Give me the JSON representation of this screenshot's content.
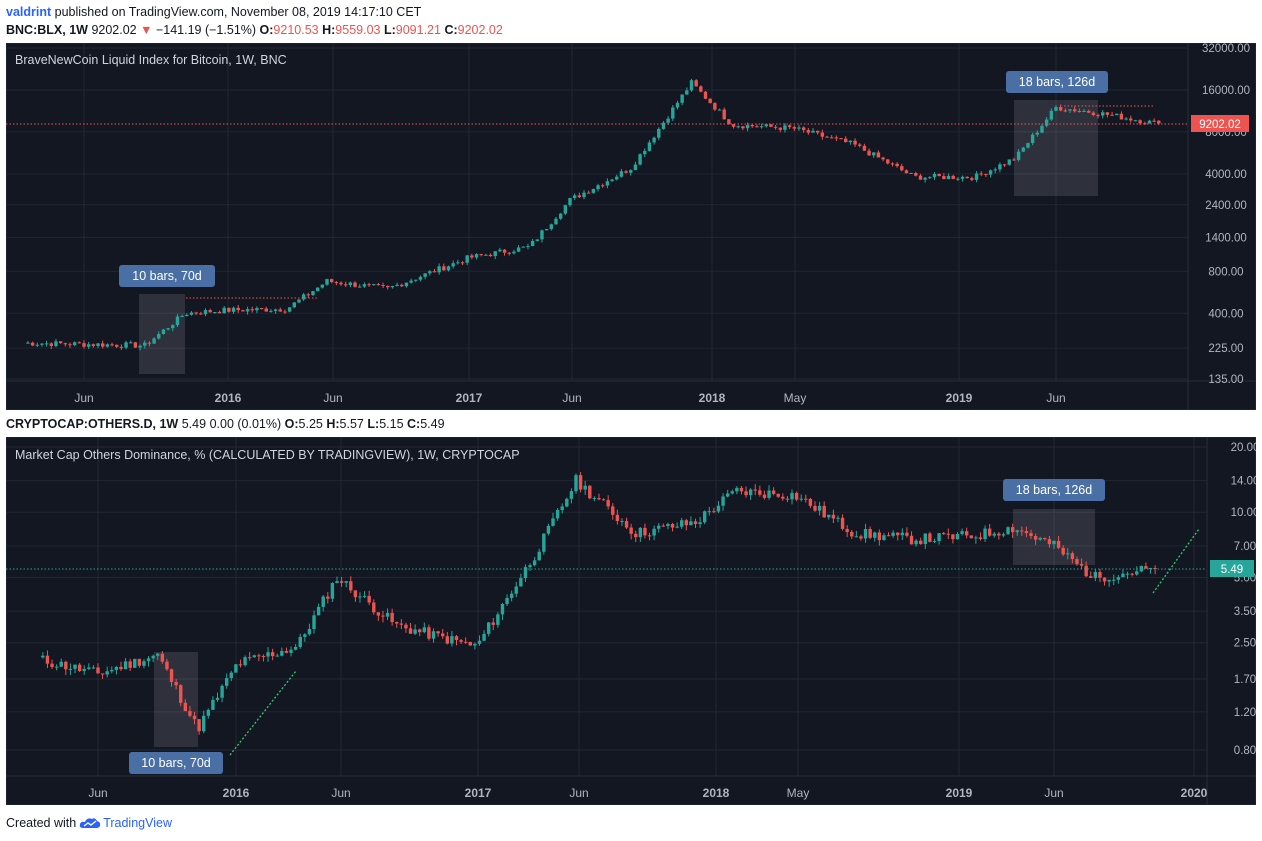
{
  "header": {
    "author": "valdrint",
    "published_text": "published on TradingView.com, November 08, 2019 14:17:10 CET"
  },
  "chart1": {
    "symbol": "BNC:BLX, 1W",
    "last": "9202.02",
    "change": "−141.19 (−1.51%)",
    "o": "9210.53",
    "h": "9559.03",
    "l": "9091.21",
    "c": "9202.02",
    "title": "BraveNewCoin Liquid Index for Bitcoin, 1W, BNC",
    "price_tag": "9202.02",
    "ticks": [
      "32000.00",
      "16000.00",
      "8000.00",
      "4000.00",
      "2400.00",
      "1400.00",
      "800.00",
      "400.00",
      "225.00",
      "135.00"
    ],
    "tick_values": [
      32000,
      16000,
      8000,
      4000,
      2400,
      1400,
      800,
      400,
      225,
      135
    ],
    "annotations": [
      "10 bars, 70d",
      "18 bars, 126d"
    ]
  },
  "chart2": {
    "symbol": "CRYPTOCAP:OTHERS.D, 1W",
    "last": "5.49",
    "change": "0.00 (0.01%)",
    "o": "5.25",
    "h": "5.57",
    "l": "5.15",
    "c": "5.49",
    "title": "Market Cap Others Dominance, % (CALCULATED BY TRADINGVIEW), 1W, CRYPTOCAP",
    "price_tag": "5.49",
    "ticks": [
      "20.00",
      "14.00",
      "10.00",
      "7.00",
      "5.00",
      "3.50",
      "2.50",
      "1.70",
      "1.20",
      "0.80"
    ],
    "tick_values": [
      20,
      14,
      10,
      7,
      5,
      3.5,
      2.5,
      1.7,
      1.2,
      0.8
    ],
    "annotations": [
      "18 bars, 126d",
      "10 bars, 70d"
    ]
  },
  "xaxis1": [
    "Jun",
    "2016",
    "Jun",
    "2017",
    "Jun",
    "2018",
    "May",
    "2019",
    "Jun"
  ],
  "xaxis2": [
    "Jun",
    "2016",
    "Jun",
    "2017",
    "Jun",
    "2018",
    "May",
    "2019",
    "Jun",
    "2020"
  ],
  "footer": {
    "created_with": "Created with",
    "brand": "TradingView"
  },
  "chart_data": [
    {
      "type": "candlestick",
      "title": "BraveNewCoin Liquid Index for Bitcoin, 1W, BNC",
      "scale": "log",
      "ylim": [
        135,
        32000
      ],
      "x": [
        "2015-03",
        "2015-06",
        "2015-09",
        "2015-11",
        "2016-01",
        "2016-04",
        "2016-06",
        "2016-09",
        "2017-01",
        "2017-04",
        "2017-06",
        "2017-09",
        "2017-12",
        "2018-02",
        "2018-05",
        "2018-08",
        "2018-11",
        "2019-02",
        "2019-04",
        "2019-06",
        "2019-08",
        "2019-11"
      ],
      "close": [
        245,
        240,
        235,
        400,
        420,
        430,
        680,
        600,
        1000,
        1200,
        2600,
        4400,
        18000,
        9000,
        8500,
        6500,
        3800,
        3800,
        5200,
        12000,
        11000,
        9202
      ],
      "last": 9202.02
    },
    {
      "type": "candlestick",
      "title": "Market Cap Others Dominance, % (CALCULATED BY TRADINGVIEW), 1W, CRYPTOCAP",
      "scale": "log",
      "ylim": [
        0.8,
        20
      ],
      "x": [
        "2015-03",
        "2015-06",
        "2015-09",
        "2015-11",
        "2016-01",
        "2016-04",
        "2016-06",
        "2016-09",
        "2017-01",
        "2017-04",
        "2017-06",
        "2017-09",
        "2017-12",
        "2018-02",
        "2018-05",
        "2018-08",
        "2018-11",
        "2019-02",
        "2019-04",
        "2019-06",
        "2019-08",
        "2019-11"
      ],
      "close": [
        2.1,
        1.8,
        2.2,
        1.0,
        2.0,
        2.4,
        5.0,
        3.0,
        2.4,
        6.5,
        14.0,
        8.0,
        9.0,
        12.5,
        12.0,
        8.0,
        7.5,
        7.8,
        8.5,
        7.0,
        5.0,
        5.49
      ],
      "last": 5.49
    }
  ]
}
